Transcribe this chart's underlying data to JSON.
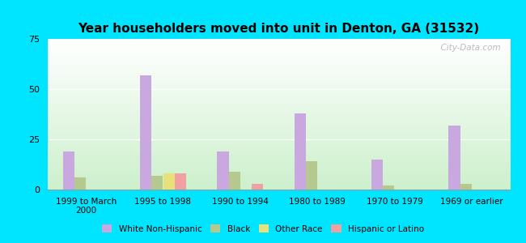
{
  "title": "Year householders moved into unit in Denton, GA (31532)",
  "categories": [
    "1999 to March\n2000",
    "1995 to 1998",
    "1990 to 1994",
    "1980 to 1989",
    "1970 to 1979",
    "1969 or earlier"
  ],
  "series": {
    "White Non-Hispanic": [
      19,
      57,
      19,
      38,
      15,
      32
    ],
    "Black": [
      6,
      7,
      9,
      14,
      2,
      3
    ],
    "Other Race": [
      0,
      8,
      0,
      0,
      0,
      0
    ],
    "Hispanic or Latino": [
      0,
      8,
      3,
      0,
      0,
      0
    ]
  },
  "colors": {
    "White Non-Hispanic": "#c9a8e0",
    "Black": "#b5c98e",
    "Other Race": "#e8e07a",
    "Hispanic or Latino": "#f0a0a0"
  },
  "ylim": [
    0,
    75
  ],
  "yticks": [
    0,
    25,
    50,
    75
  ],
  "bar_width": 0.15,
  "outer_bg": "#00e5ff",
  "watermark": "  City-Data.com"
}
